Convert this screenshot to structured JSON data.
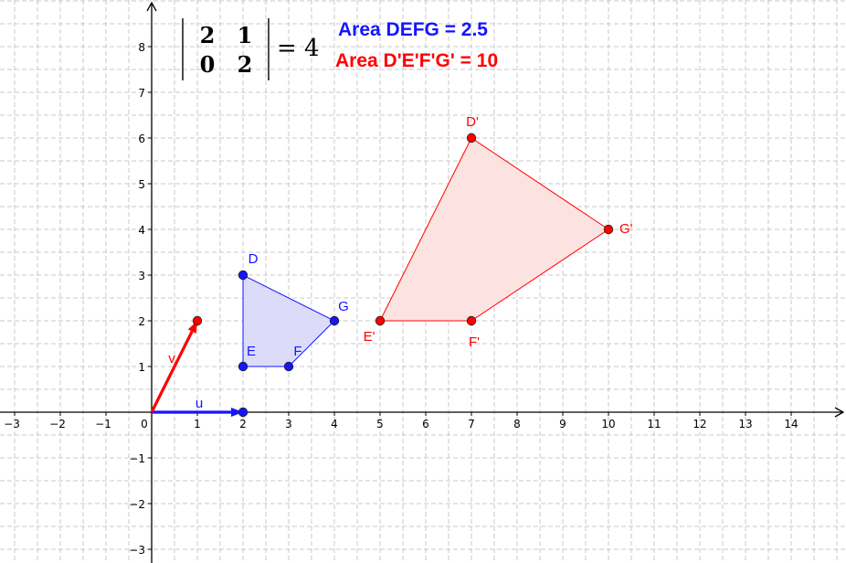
{
  "graph": {
    "x_range": [
      -3.3,
      15.2
    ],
    "y_range": [
      -3.3,
      9.0
    ],
    "x_ticks": [
      "-3",
      "-2",
      "-1",
      "0",
      "1",
      "2",
      "3",
      "4",
      "5",
      "6",
      "7",
      "8",
      "9",
      "10",
      "11",
      "12",
      "13",
      "14"
    ],
    "y_ticks": [
      "-3",
      "-2",
      "-1",
      "1",
      "2",
      "3",
      "4",
      "5",
      "6",
      "7",
      "8"
    ],
    "grid": true,
    "colors": {
      "blue": "#1515ff",
      "blue_fill": "#dcdcf8",
      "red": "#ff0000",
      "red_fill": "#fde2e2",
      "grid": "#c8c8c8"
    }
  },
  "vectors": [
    {
      "name": "u",
      "label": "u",
      "to": [
        2,
        0
      ],
      "color": "#1515ff"
    },
    {
      "name": "v",
      "label": "v",
      "to": [
        1,
        2
      ],
      "color": "#ff0000"
    }
  ],
  "polygons": [
    {
      "name": "DEFG",
      "color": "#1515ff",
      "fill": "#dcdcf8",
      "points": [
        {
          "label": "D",
          "x": 2,
          "y": 3
        },
        {
          "label": "E",
          "x": 2,
          "y": 1
        },
        {
          "label": "F",
          "x": 3,
          "y": 1
        },
        {
          "label": "G",
          "x": 4,
          "y": 2
        }
      ]
    },
    {
      "name": "D'E'F'G'",
      "color": "#ff0000",
      "fill": "#fde2e2",
      "points": [
        {
          "label": "D'",
          "x": 7,
          "y": 6
        },
        {
          "label": "E'",
          "x": 5,
          "y": 2
        },
        {
          "label": "F'",
          "x": 7,
          "y": 2
        },
        {
          "label": "G'",
          "x": 10,
          "y": 4
        }
      ]
    }
  ],
  "matrix": {
    "a": "2",
    "b": "1",
    "c": "0",
    "d": "2",
    "result": "= 4"
  },
  "areas": {
    "original": "Area DEFG = 2.5",
    "transformed": "Area D'E'F'G' = 10"
  }
}
